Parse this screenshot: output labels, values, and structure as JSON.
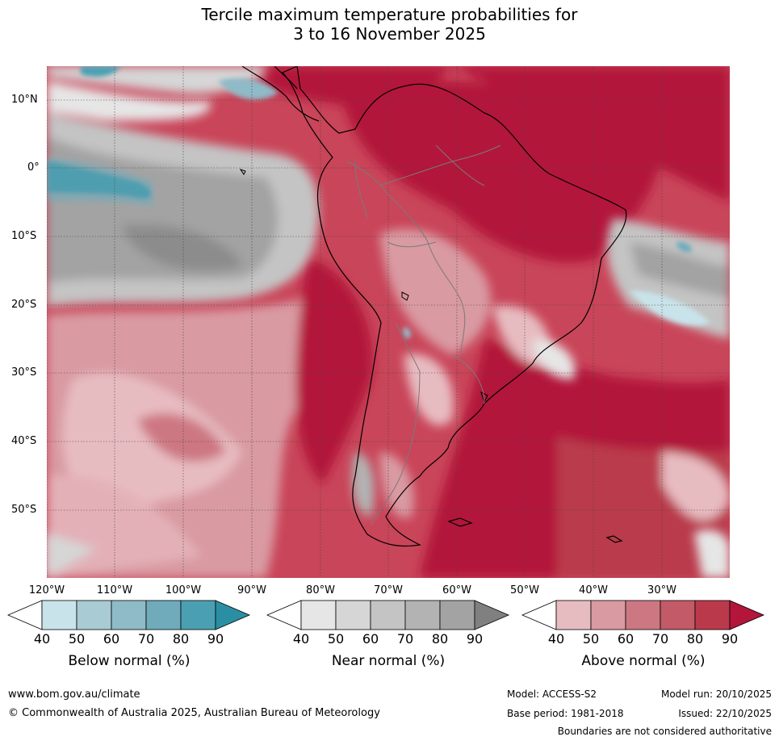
{
  "title": {
    "line1": "Tercile maximum temperature probabilities for",
    "line2": "3 to 16 November 2025"
  },
  "map": {
    "lat_labels": [
      "10°N",
      "0°",
      "10°S",
      "20°S",
      "30°S",
      "40°S",
      "50°S"
    ],
    "lon_labels": [
      "120°W",
      "110°W",
      "100°W",
      "90°W",
      "80°W",
      "70°W",
      "60°W",
      "50°W",
      "40°W",
      "30°W"
    ],
    "colors": {
      "land_border": "#000000",
      "country_border": "#7a7a7a",
      "grid": "#444444"
    }
  },
  "legends": [
    {
      "name": "Below normal (%)",
      "ticks": [
        "40",
        "50",
        "60",
        "70",
        "80",
        "90"
      ],
      "colors": [
        "#ffffff",
        "#c9e3ea",
        "#a9cbd3",
        "#8fbac7",
        "#6fabbb",
        "#4aa0b2",
        "#2a8fa2"
      ]
    },
    {
      "name": "Near normal (%)",
      "ticks": [
        "40",
        "50",
        "60",
        "70",
        "80",
        "90"
      ],
      "colors": [
        "#ffffff",
        "#e6e6e6",
        "#d6d6d6",
        "#c4c4c4",
        "#b3b3b3",
        "#a3a3a3",
        "#808080"
      ]
    },
    {
      "name": "Above normal (%)",
      "ticks": [
        "40",
        "50",
        "60",
        "70",
        "80",
        "90"
      ],
      "colors": [
        "#ffffff",
        "#e7bcc1",
        "#d99aa2",
        "#cd7782",
        "#c35a67",
        "#ba3a4c",
        "#b3163a"
      ]
    }
  ],
  "footer": {
    "url": "www.bom.gov.au/climate",
    "copyright": "© Commonwealth of Australia 2025, Australian Bureau of Meteorology",
    "model": "Model: ACCESS-S2",
    "base_period": "Base period: 1981-2018",
    "model_run": "Model run: 20/10/2025",
    "issued": "Issued: 22/10/2025",
    "disclaimer": "Boundaries are not considered authoritative"
  }
}
